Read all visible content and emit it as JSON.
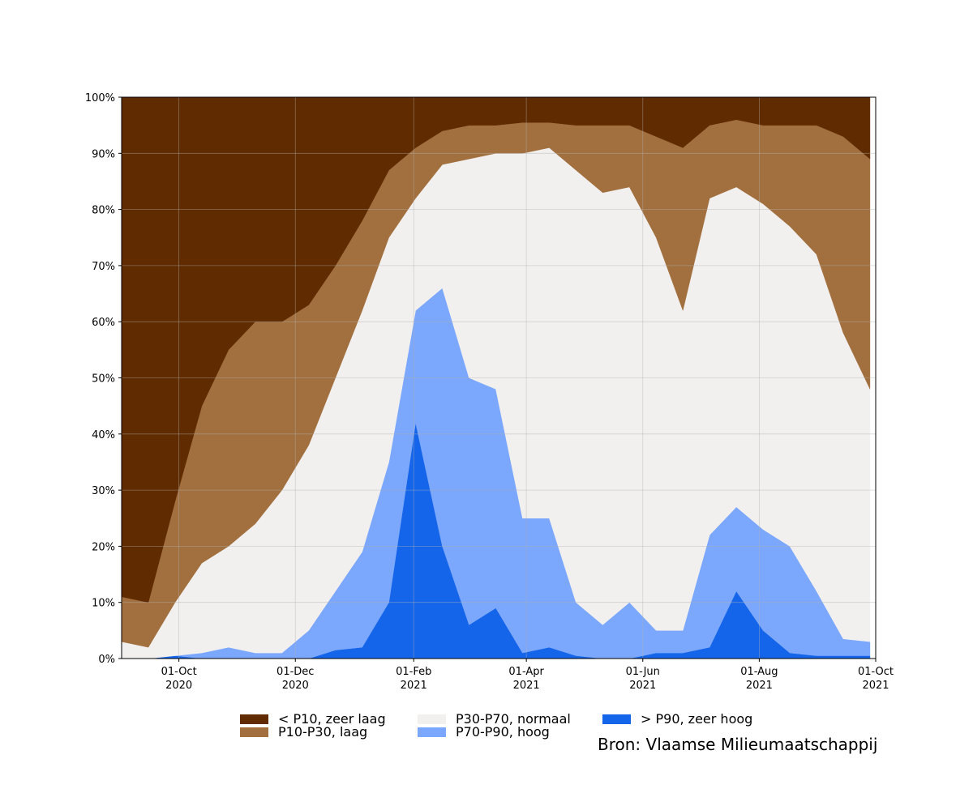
{
  "chart_data": {
    "type": "stacked_area",
    "x": [
      "2020-09-01",
      "2020-09-15",
      "2020-09-29",
      "2020-10-13",
      "2020-10-27",
      "2020-11-10",
      "2020-11-24",
      "2020-12-08",
      "2020-12-22",
      "2021-01-05",
      "2021-01-19",
      "2021-02-02",
      "2021-02-16",
      "2021-03-02",
      "2021-03-16",
      "2021-03-30",
      "2021-04-13",
      "2021-04-27",
      "2021-05-11",
      "2021-05-25",
      "2021-06-08",
      "2021-06-22",
      "2021-07-06",
      "2021-07-20",
      "2021-08-03",
      "2021-08-17",
      "2021-08-31",
      "2021-09-14",
      "2021-09-28"
    ],
    "series": [
      {
        "name": "< P10, zeer laag",
        "color": "#612b00",
        "values": [
          89,
          90,
          72,
          55,
          45,
          40,
          40,
          37,
          30,
          22,
          13,
          9,
          6,
          5,
          5,
          4.5,
          4.5,
          5,
          5,
          5,
          7,
          9,
          5,
          4,
          5,
          5,
          5,
          7,
          11
        ]
      },
      {
        "name": "P10-P30, laag",
        "color": "#a2703f",
        "values": [
          8,
          8,
          18,
          28,
          35,
          36,
          30,
          25,
          20,
          16,
          12,
          9,
          6,
          6,
          5,
          5.5,
          4.5,
          8,
          12,
          11,
          18,
          29,
          13,
          12,
          14,
          18,
          23,
          35,
          41
        ]
      },
      {
        "name": "P30-P70, normaal",
        "color": "#f2f0ef",
        "values": [
          3,
          2,
          9.5,
          16,
          18,
          23,
          29,
          33,
          38,
          43,
          40,
          20,
          22,
          39,
          42,
          65,
          66,
          77,
          77,
          74,
          70,
          57,
          60,
          57,
          58,
          57,
          60,
          54.5,
          45
        ]
      },
      {
        "name": "P70-P90, hoog",
        "color": "#7ba7fc",
        "values": [
          0,
          0,
          0,
          1,
          2,
          1,
          1,
          5,
          10.5,
          17,
          25,
          20,
          46,
          44,
          39,
          24,
          23,
          9.5,
          6,
          10,
          4,
          4,
          20,
          15,
          18,
          19,
          11.5,
          3,
          2.5
        ]
      },
      {
        "name": "> P90, zeer hoog",
        "color": "#1565eb",
        "values": [
          0,
          0,
          0.5,
          0,
          0,
          0,
          0,
          0,
          1.5,
          2,
          10,
          42,
          20,
          6,
          9,
          1,
          2,
          0.5,
          0,
          0,
          1,
          1,
          2,
          12,
          5,
          1,
          0.5,
          0.5,
          0.5
        ]
      }
    ],
    "xlim": [
      "2020-09-01",
      "2021-10-01"
    ],
    "xticks": [
      {
        "value": "2020-10-01",
        "label": "01-Oct\n2020"
      },
      {
        "value": "2020-12-01",
        "label": "01-Dec\n2020"
      },
      {
        "value": "2021-02-01",
        "label": "01-Feb\n2021"
      },
      {
        "value": "2021-04-01",
        "label": "01-Apr\n2021"
      },
      {
        "value": "2021-06-01",
        "label": "01-Jun\n2021"
      },
      {
        "value": "2021-08-01",
        "label": "01-Aug\n2021"
      },
      {
        "value": "2021-10-01",
        "label": "01-Oct\n2021"
      }
    ],
    "ylim": [
      0,
      100
    ],
    "yticks": [
      {
        "value": 0,
        "label": "0%"
      },
      {
        "value": 10,
        "label": "10%"
      },
      {
        "value": 20,
        "label": "20%"
      },
      {
        "value": 30,
        "label": "30%"
      },
      {
        "value": 40,
        "label": "40%"
      },
      {
        "value": 50,
        "label": "50%"
      },
      {
        "value": 60,
        "label": "60%"
      },
      {
        "value": 70,
        "label": "70%"
      },
      {
        "value": 80,
        "label": "80%"
      },
      {
        "value": 90,
        "label": "90%"
      },
      {
        "value": 100,
        "label": "100%"
      }
    ],
    "grid": true,
    "source": "Bron: Vlaamse Milieumaatschappij"
  }
}
